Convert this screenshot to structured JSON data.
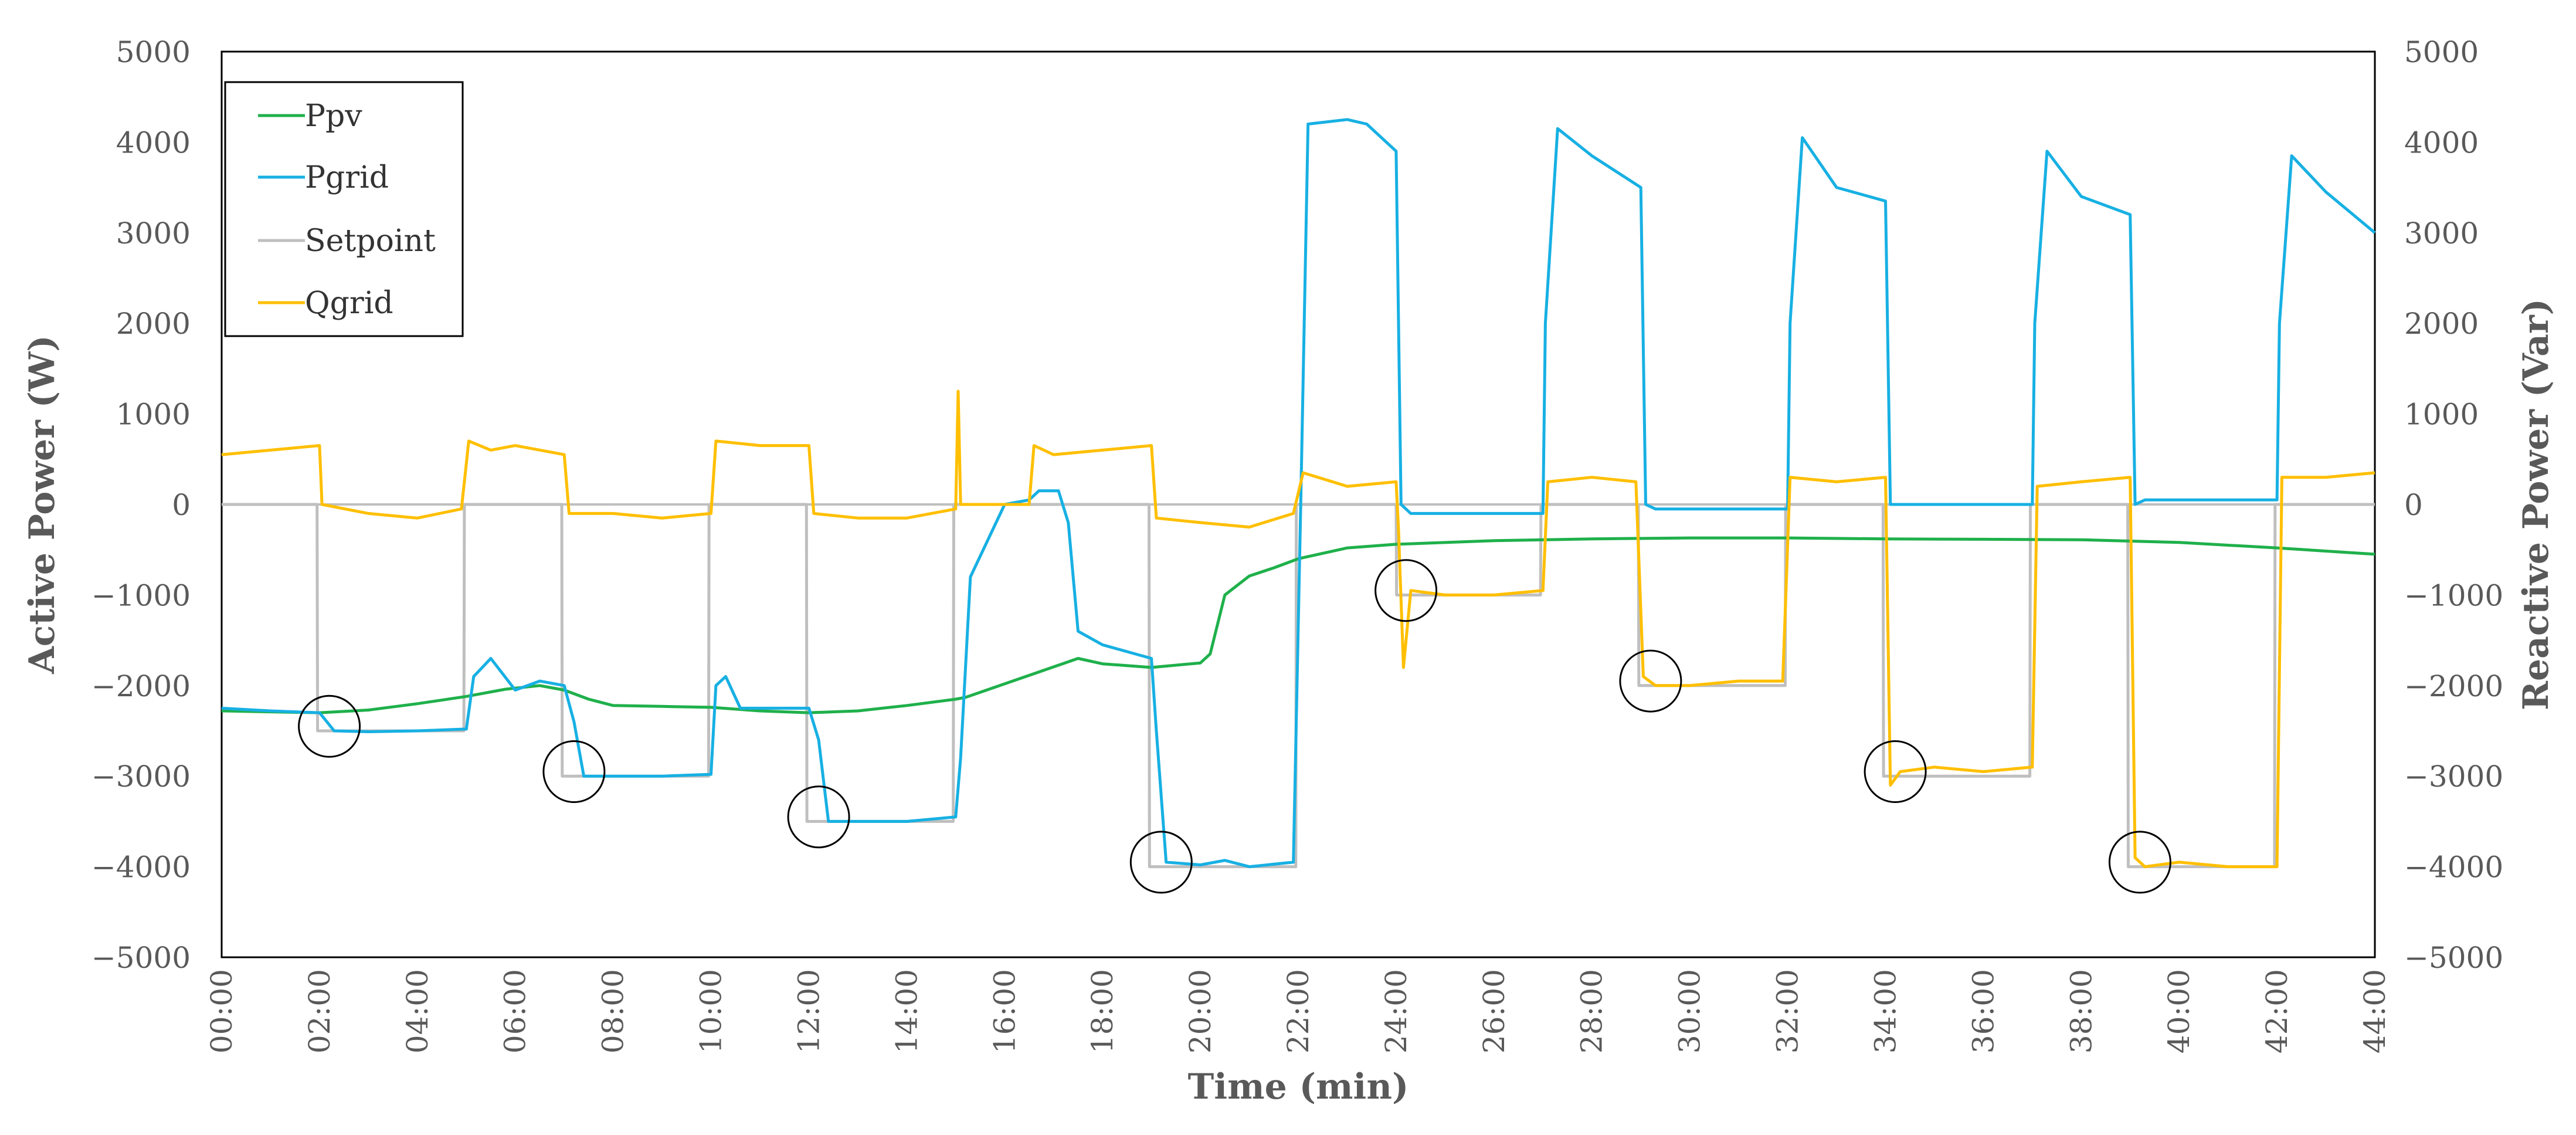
{
  "chart_data": {
    "type": "line",
    "title": "",
    "xlabel": "Time (min)",
    "ylabel": "Active Power (W)",
    "y2label": "Reactive Power (Var)",
    "xlim": [
      0,
      44
    ],
    "ylim": [
      -5000,
      5000
    ],
    "y2lim": [
      -5000,
      5000
    ],
    "x_ticks": [
      0,
      2,
      4,
      6,
      8,
      10,
      12,
      14,
      16,
      18,
      20,
      22,
      24,
      26,
      28,
      30,
      32,
      34,
      36,
      38,
      40,
      42,
      44
    ],
    "x_tick_labels": [
      "00:00",
      "02:00",
      "04:00",
      "06:00",
      "08:00",
      "10:00",
      "12:00",
      "14:00",
      "16:00",
      "18:00",
      "20:00",
      "22:00",
      "24:00",
      "26:00",
      "28:00",
      "30:00",
      "32:00",
      "34:00",
      "36:00",
      "38:00",
      "40:00",
      "42:00",
      "44:00"
    ],
    "y_ticks": [
      5000,
      4000,
      3000,
      2000,
      1000,
      0,
      -1000,
      -2000,
      -3000,
      -4000,
      -5000
    ],
    "y_tick_labels": [
      "5000",
      "4000",
      "3000",
      "2000",
      "1000",
      "0",
      "−1000",
      "−2000",
      "−3000",
      "−4000",
      "−5000"
    ],
    "grid": false,
    "legend_position": "top-left",
    "series": [
      {
        "name": "Ppv",
        "color": "#1fb04b",
        "x": [
          0,
          1,
          2,
          3,
          4,
          5,
          5.8,
          6.5,
          7,
          7.5,
          8,
          9,
          10,
          11,
          12,
          13,
          14,
          15,
          15.2,
          17.5,
          18,
          19,
          20,
          20.2,
          20.5,
          21,
          21.5,
          22,
          23,
          24,
          26,
          28,
          30,
          32,
          34,
          36,
          38,
          40,
          42,
          44
        ],
        "values": [
          -2280,
          -2290,
          -2300,
          -2270,
          -2200,
          -2120,
          -2040,
          -2000,
          -2050,
          -2150,
          -2220,
          -2230,
          -2240,
          -2280,
          -2300,
          -2280,
          -2220,
          -2150,
          -2130,
          -1700,
          -1760,
          -1800,
          -1750,
          -1650,
          -1000,
          -790,
          -700,
          -600,
          -480,
          -440,
          -400,
          -380,
          -370,
          -370,
          -380,
          -385,
          -390,
          -420,
          -480,
          -550
        ]
      },
      {
        "name": "Pgrid",
        "color": "#17b0e3",
        "x": [
          0,
          1,
          2,
          2.3,
          3,
          4,
          5,
          5.15,
          5.5,
          6,
          6.5,
          7,
          7.2,
          7.4,
          8,
          9,
          10,
          10.1,
          10.3,
          10.6,
          11,
          12,
          12.2,
          12.4,
          13,
          14,
          15,
          15.1,
          15.3,
          16,
          16.5,
          16.7,
          17.1,
          17.3,
          17.5,
          18,
          19,
          19.1,
          19.3,
          20,
          20.5,
          21,
          21.9,
          22.05,
          22.2,
          23,
          23.4,
          24,
          24.1,
          24.3,
          25,
          26,
          27,
          27.05,
          27.3,
          28,
          29,
          29.1,
          29.3,
          30,
          32,
          32.05,
          32.3,
          33,
          34,
          34.1,
          34.3,
          35,
          37,
          37.05,
          37.3,
          38,
          39,
          39.1,
          39.3,
          40,
          42,
          42.05,
          42.3,
          43,
          44
        ],
        "values": [
          -2250,
          -2280,
          -2300,
          -2500,
          -2510,
          -2500,
          -2480,
          -1900,
          -1700,
          -2050,
          -1950,
          -2000,
          -2400,
          -3000,
          -3000,
          -3000,
          -2980,
          -2000,
          -1900,
          -2250,
          -2250,
          -2250,
          -2600,
          -3500,
          -3500,
          -3500,
          -3450,
          -2800,
          -800,
          0,
          50,
          150,
          150,
          -200,
          -1400,
          -1550,
          -1700,
          -2500,
          -3950,
          -3980,
          -3930,
          -4000,
          -3950,
          0,
          4200,
          4250,
          4200,
          3900,
          0,
          -100,
          -100,
          -100,
          -100,
          2000,
          4150,
          3850,
          3500,
          0,
          -50,
          -50,
          -50,
          2000,
          4050,
          3500,
          3350,
          0,
          0,
          0,
          0,
          2000,
          3900,
          3400,
          3200,
          0,
          50,
          50,
          50,
          2000,
          3850,
          3450,
          3000
        ]
      },
      {
        "name": "Setpoint",
        "color": "#bfbfbf",
        "x": [
          0,
          1.95,
          1.96,
          4.95,
          4.96,
          6.95,
          6.96,
          9.95,
          9.96,
          11.95,
          11.96,
          14.95,
          14.96,
          18.95,
          18.96,
          21.95,
          21.96,
          24.0,
          24.01,
          26.95,
          26.96,
          28.95,
          28.96,
          31.95,
          31.96,
          33.95,
          33.96,
          36.95,
          36.96,
          38.95,
          38.96,
          41.95,
          41.96,
          44
        ],
        "values": [
          0,
          0,
          -2500,
          -2500,
          0,
          0,
          -3000,
          -3000,
          0,
          0,
          -3500,
          -3500,
          0,
          0,
          -4000,
          -4000,
          0,
          0,
          -1000,
          -1000,
          0,
          0,
          -2000,
          -2000,
          0,
          0,
          -3000,
          -3000,
          0,
          0,
          -4000,
          -4000,
          0,
          0
        ]
      },
      {
        "name": "Qgrid",
        "color": "#ffbf00",
        "x": [
          0,
          1,
          2,
          2.05,
          3,
          4,
          4.9,
          5.05,
          5.5,
          6,
          7,
          7.1,
          8,
          9,
          10,
          10.1,
          11,
          12,
          12.1,
          13,
          14,
          15,
          15.05,
          15.1,
          15.2,
          16,
          16.5,
          16.6,
          17,
          18,
          19,
          19.1,
          20,
          21,
          21.9,
          22.1,
          23,
          24,
          24.05,
          24.15,
          24.3,
          25,
          26,
          27,
          27.1,
          28,
          28.9,
          29.05,
          29.3,
          30,
          31,
          31.9,
          32.05,
          33,
          34,
          34.1,
          34.3,
          35,
          36,
          37,
          37.1,
          38,
          39,
          39.1,
          39.3,
          40,
          41,
          42,
          42.1,
          43,
          44
        ],
        "values": [
          550,
          600,
          650,
          0,
          -100,
          -150,
          -50,
          700,
          600,
          650,
          550,
          -100,
          -100,
          -150,
          -100,
          700,
          650,
          650,
          -100,
          -150,
          -150,
          -50,
          1250,
          0,
          0,
          0,
          0,
          650,
          550,
          600,
          650,
          -150,
          -200,
          -250,
          -100,
          350,
          200,
          250,
          -300,
          -1800,
          -950,
          -1000,
          -1000,
          -950,
          250,
          300,
          250,
          -1900,
          -2000,
          -2000,
          -1950,
          -1950,
          300,
          250,
          300,
          -3100,
          -2950,
          -2900,
          -2950,
          -2900,
          200,
          250,
          300,
          -3900,
          -4000,
          -3950,
          -4000,
          -4000,
          300,
          300,
          350
        ]
      }
    ],
    "annotations": [
      {
        "type": "circle",
        "x": 2.2,
        "y": -2450
      },
      {
        "type": "circle",
        "x": 7.2,
        "y": -2950
      },
      {
        "type": "circle",
        "x": 12.2,
        "y": -3450
      },
      {
        "type": "circle",
        "x": 19.2,
        "y": -3950
      },
      {
        "type": "circle",
        "x": 24.2,
        "y": -950
      },
      {
        "type": "circle",
        "x": 29.2,
        "y": -1950
      },
      {
        "type": "circle",
        "x": 34.2,
        "y": -2950
      },
      {
        "type": "circle",
        "x": 39.2,
        "y": -3950
      }
    ]
  }
}
